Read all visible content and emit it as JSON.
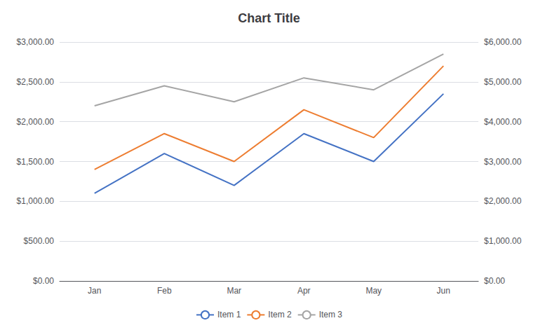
{
  "chart_data": {
    "type": "line",
    "title": "Chart Title",
    "categories": [
      "Jan",
      "Feb",
      "Mar",
      "Apr",
      "May",
      "Jun"
    ],
    "series": [
      {
        "name": "Item 1",
        "color": "#4472C4",
        "values": [
          1100,
          1600,
          1200,
          1850,
          1500,
          2350
        ]
      },
      {
        "name": "Item 2",
        "color": "#ED7D31",
        "values": [
          1400,
          1850,
          1500,
          2150,
          1800,
          2700
        ]
      },
      {
        "name": "Item 3",
        "color": "#A5A5A5",
        "values": [
          4400,
          4900,
          4500,
          5100,
          4800,
          5700
        ],
        "axis": "y2"
      }
    ],
    "ylim": [
      0,
      3000
    ],
    "yticks": [
      {
        "value": 0,
        "label": "$0.00"
      },
      {
        "value": 500,
        "label": "$500.00"
      },
      {
        "value": 1000,
        "label": "$1,000.00"
      },
      {
        "value": 1500,
        "label": "$1,500.00"
      },
      {
        "value": 2000,
        "label": "$2,000.00"
      },
      {
        "value": 2500,
        "label": "$2,500.00"
      },
      {
        "value": 3000,
        "label": "$3,000.00"
      }
    ],
    "y2lim": [
      0,
      6000
    ],
    "y2ticks": [
      {
        "value": 0,
        "label": "$0.00"
      },
      {
        "value": 1000,
        "label": "$1,000.00"
      },
      {
        "value": 2000,
        "label": "$2,000.00"
      },
      {
        "value": 3000,
        "label": "$3,000.00"
      },
      {
        "value": 4000,
        "label": "$4,000.00"
      },
      {
        "value": 5000,
        "label": "$5,000.00"
      },
      {
        "value": 6000,
        "label": "$6,000.00"
      }
    ],
    "grid": true,
    "legend": "bottom"
  }
}
